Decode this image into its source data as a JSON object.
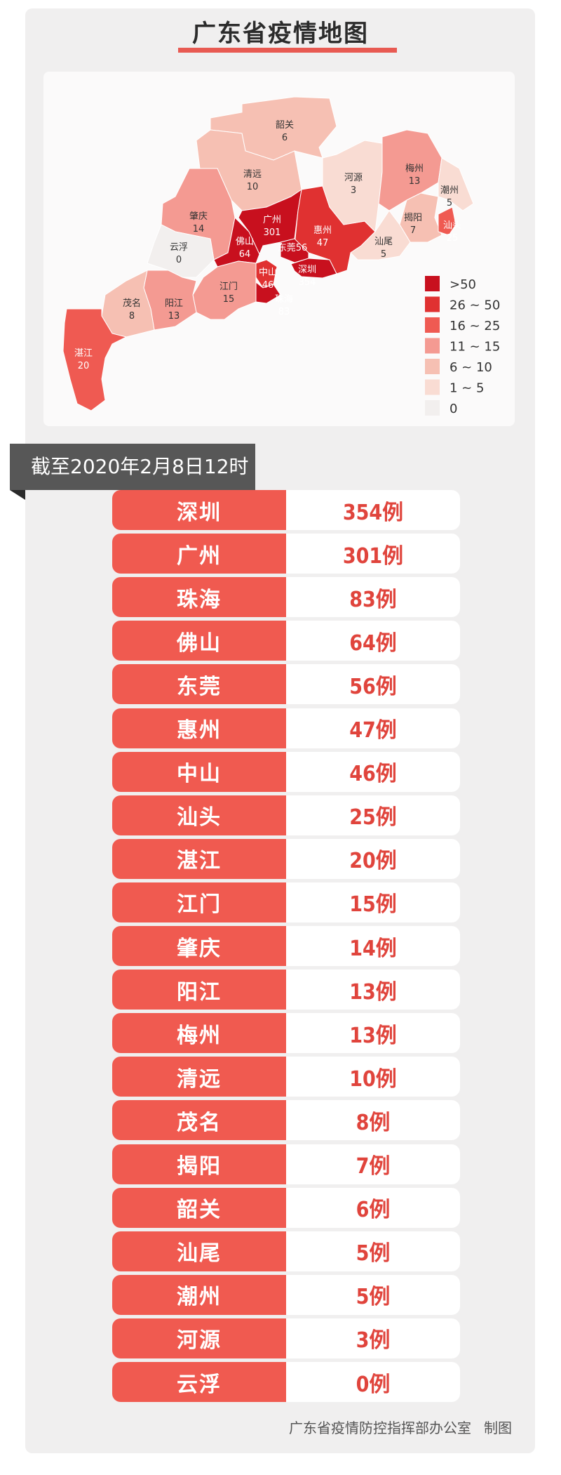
{
  "title": "广东省疫情地图",
  "as_of": "截至2020年2月8日12时",
  "footer": {
    "org": "广东省疫情防控指挥部办公室",
    "label": "制图"
  },
  "legend": [
    {
      "label": ">50",
      "color": "#c8101e",
      "min": 51,
      "max": 100000
    },
    {
      "label": "26 ~ 50",
      "color": "#e03131",
      "min": 26,
      "max": 50
    },
    {
      "label": "16 ~ 25",
      "color": "#ef5a52",
      "min": 16,
      "max": 25
    },
    {
      "label": "11 ~ 15",
      "color": "#f49a92",
      "min": 11,
      "max": 15
    },
    {
      "label": "6 ~ 10",
      "color": "#f6c0b3",
      "min": 6,
      "max": 10
    },
    {
      "label": "1 ~ 5",
      "color": "#f9dcd3",
      "min": 1,
      "max": 5
    },
    {
      "label": "0",
      "color": "#f2efee",
      "min": 0,
      "max": 0
    }
  ],
  "cities": [
    {
      "name": "深圳",
      "count": 354,
      "display": "354例"
    },
    {
      "name": "广州",
      "count": 301,
      "display": "301例"
    },
    {
      "name": "珠海",
      "count": 83,
      "display": "83例"
    },
    {
      "name": "佛山",
      "count": 64,
      "display": "64例"
    },
    {
      "name": "东莞",
      "count": 56,
      "display": "56例"
    },
    {
      "name": "惠州",
      "count": 47,
      "display": "47例"
    },
    {
      "name": "中山",
      "count": 46,
      "display": "46例"
    },
    {
      "name": "汕头",
      "count": 25,
      "display": "25例"
    },
    {
      "name": "湛江",
      "count": 20,
      "display": "20例"
    },
    {
      "name": "江门",
      "count": 15,
      "display": "15例"
    },
    {
      "name": "肇庆",
      "count": 14,
      "display": "14例"
    },
    {
      "name": "阳江",
      "count": 13,
      "display": "13例"
    },
    {
      "name": "梅州",
      "count": 13,
      "display": "13例"
    },
    {
      "name": "清远",
      "count": 10,
      "display": "10例"
    },
    {
      "name": "茂名",
      "count": 8,
      "display": "8例"
    },
    {
      "name": "揭阳",
      "count": 7,
      "display": "7例"
    },
    {
      "name": "韶关",
      "count": 6,
      "display": "6例"
    },
    {
      "name": "汕尾",
      "count": 5,
      "display": "5例"
    },
    {
      "name": "潮州",
      "count": 5,
      "display": "5例"
    },
    {
      "name": "河源",
      "count": 3,
      "display": "3例"
    },
    {
      "name": "云浮",
      "count": 0,
      "display": "0例"
    }
  ]
}
